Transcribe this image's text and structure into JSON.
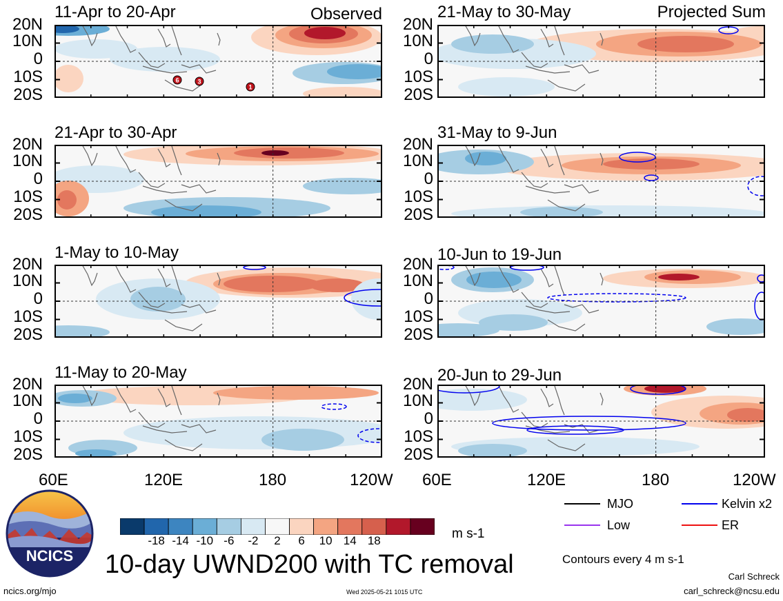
{
  "panels": [
    {
      "title": "11-Apr to 20-Apr",
      "corner": "Observed"
    },
    {
      "title": "21-Apr to 30-Apr",
      "corner": ""
    },
    {
      "title": "1-May to 10-May",
      "corner": ""
    },
    {
      "title": "11-May to 20-May",
      "corner": ""
    },
    {
      "title": "21-May to 30-May",
      "corner": "Projected Sum"
    },
    {
      "title": "31-May to 9-Jun",
      "corner": ""
    },
    {
      "title": "10-Jun to 19-Jun",
      "corner": ""
    },
    {
      "title": "20-Jun to 29-Jun",
      "corner": ""
    }
  ],
  "lat_labels": [
    "20N",
    "10N",
    "0",
    "10S",
    "20S"
  ],
  "lon_labels": [
    "60E",
    "120E",
    "180",
    "120W"
  ],
  "lon_labels_right": [
    "60E",
    "120E",
    "180",
    "120W"
  ],
  "tc_markers": [
    "6",
    "3",
    "1"
  ],
  "colorbar": {
    "ticks": [
      "-18",
      "-14",
      "-10",
      "-6",
      "-2",
      "2",
      "6",
      "10",
      "14",
      "18"
    ],
    "colors": [
      "#0a3a6b",
      "#2166ac",
      "#3d85c0",
      "#6baed6",
      "#a6cde3",
      "#d8e9f3",
      "#f7f7f7",
      "#fbd5c0",
      "#f4a582",
      "#e3775e",
      "#d6604d",
      "#b2182b",
      "#67001f"
    ],
    "unit": "m s-1"
  },
  "legend": {
    "items": [
      {
        "label": "MJO",
        "color": "#000000"
      },
      {
        "label": "Kelvin x2",
        "color": "#0000ee"
      },
      {
        "label": "Low",
        "color": "#9933ee"
      },
      {
        "label": "ER",
        "color": "#ee1111"
      }
    ],
    "contour_note": "Contours every 4 m s-1"
  },
  "main_title": "10-day UWND200 with TC removal",
  "footer": {
    "url": "ncics.org/mjo",
    "timestamp": "Wed 2025-05-21 1015 UTC",
    "author": "Carl Schreck",
    "email": "carl_schreck@ncsu.edu"
  },
  "logo": {
    "text": "NCICS"
  }
}
